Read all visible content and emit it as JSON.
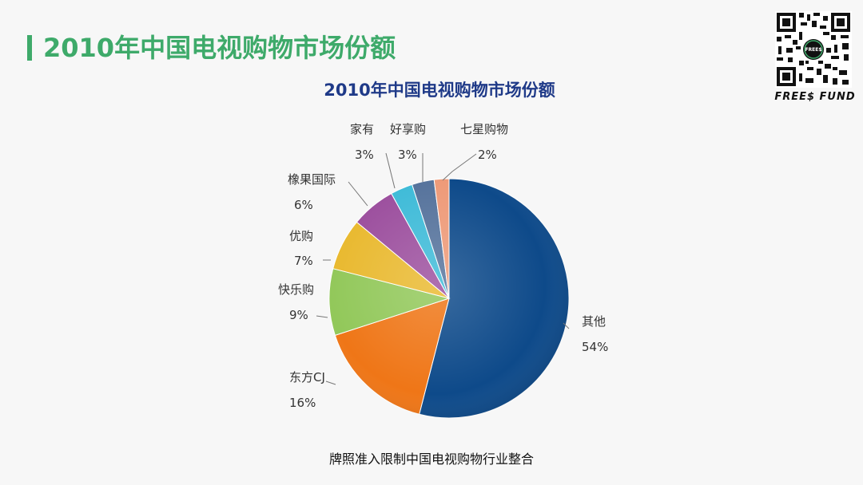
{
  "header": {
    "title": "2010年中国电视购物市场份额"
  },
  "brand": {
    "name": "FREE$ FUND",
    "qr_logo_text": "FREE$"
  },
  "caption": "牌照准入限制中国电视购物行业整合",
  "colors": {
    "accent": "#3eaa6a",
    "chart_title": "#1f3a88"
  },
  "chart_data": {
    "type": "pie",
    "title": "2010年中国电视购物市场份额",
    "slices": [
      {
        "label": "其他",
        "value": 54,
        "value_label": "54%",
        "color": "#0e4a8a"
      },
      {
        "label": "东方CJ",
        "value": 16,
        "value_label": "16%",
        "color": "#ef7617"
      },
      {
        "label": "快乐购",
        "value": 9,
        "value_label": "9%",
        "color": "#92c85a"
      },
      {
        "label": "优购",
        "value": 7,
        "value_label": "7%",
        "color": "#e9b92f"
      },
      {
        "label": "橡果国际",
        "value": 6,
        "value_label": "6%",
        "color": "#9c4f9e"
      },
      {
        "label": "家有",
        "value": 3,
        "value_label": "3%",
        "color": "#3fbbd8"
      },
      {
        "label": "好享购",
        "value": 3,
        "value_label": "3%",
        "color": "#56739c"
      },
      {
        "label": "七星购物",
        "value": 2,
        "value_label": "2%",
        "color": "#ee9a78"
      }
    ],
    "start_angle_deg": 0,
    "direction": "clockwise",
    "legend": "none",
    "labels": "outside with leader lines"
  }
}
